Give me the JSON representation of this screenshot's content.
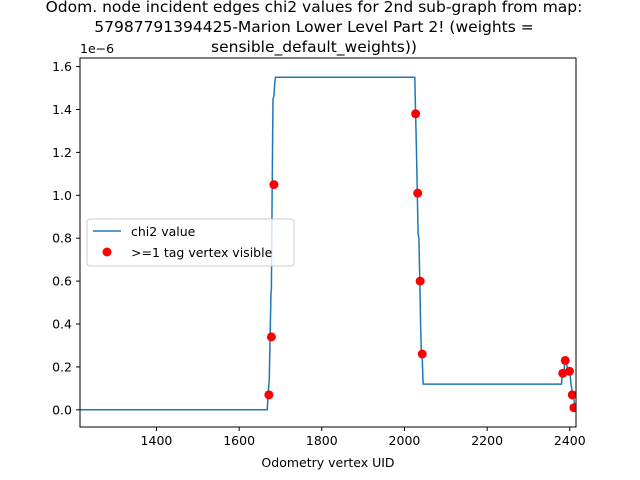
{
  "chart_data": {
    "type": "line",
    "title_lines": [
      "Odom. node incident edges chi2 values for 2nd sub-graph from  map:",
      "57987791394425-Marion Lower Level Part 2! (weights =",
      "sensible_default_weights))"
    ],
    "xlabel": "Odometry vertex UID",
    "ylabel": "",
    "y_offset_text": "1e−6",
    "xlim": [
      1215,
      2415
    ],
    "ylim": [
      -0.08,
      1.64
    ],
    "x_ticks": [
      1400,
      1600,
      1800,
      2000,
      2200,
      2400
    ],
    "x_tick_labels": [
      "1400",
      "1600",
      "1800",
      "2000",
      "2200",
      "2400"
    ],
    "y_ticks": [
      0.0,
      0.2,
      0.4,
      0.6,
      0.8,
      1.0,
      1.2,
      1.4,
      1.6
    ],
    "y_tick_labels": [
      "0.0",
      "0.2",
      "0.4",
      "0.6",
      "0.8",
      "1.0",
      "1.2",
      "1.4",
      "1.6"
    ],
    "legend_position": "center-left",
    "grid": false,
    "series": [
      {
        "name": "chi2 value",
        "kind": "line",
        "color": "#1f77b4",
        "x": [
          1215,
          1668,
          1670,
          1673,
          1675,
          1677,
          1678,
          1680,
          1682,
          1684,
          1686,
          1688,
          2025,
          2027,
          2029,
          2031,
          2033,
          2035,
          2037,
          2039,
          2041,
          2043,
          2045,
          2047,
          2380,
          2382,
          2386,
          2388,
          2390,
          2392,
          2394,
          2400,
          2403,
          2407,
          2410,
          2412,
          2415
        ],
        "y": [
          0.0,
          0.0,
          0.07,
          0.15,
          0.34,
          0.55,
          0.56,
          1.05,
          1.45,
          1.46,
          1.52,
          1.55,
          1.55,
          1.38,
          1.2,
          1.01,
          0.82,
          0.8,
          0.6,
          0.4,
          0.26,
          0.25,
          0.12,
          0.12,
          0.12,
          0.17,
          0.18,
          0.22,
          0.23,
          0.23,
          0.19,
          0.18,
          0.12,
          0.07,
          0.05,
          0.01,
          0.0
        ]
      },
      {
        "name": ">=1 tag vertex visible",
        "kind": "scatter",
        "color": "#ff0000",
        "x": [
          1672,
          1678,
          1684,
          2027,
          2032,
          2038,
          2043,
          2383,
          2389,
          2399,
          2406,
          2410
        ],
        "y": [
          0.07,
          0.34,
          1.05,
          1.38,
          1.01,
          0.6,
          0.26,
          0.17,
          0.23,
          0.18,
          0.07,
          0.01
        ]
      }
    ]
  }
}
